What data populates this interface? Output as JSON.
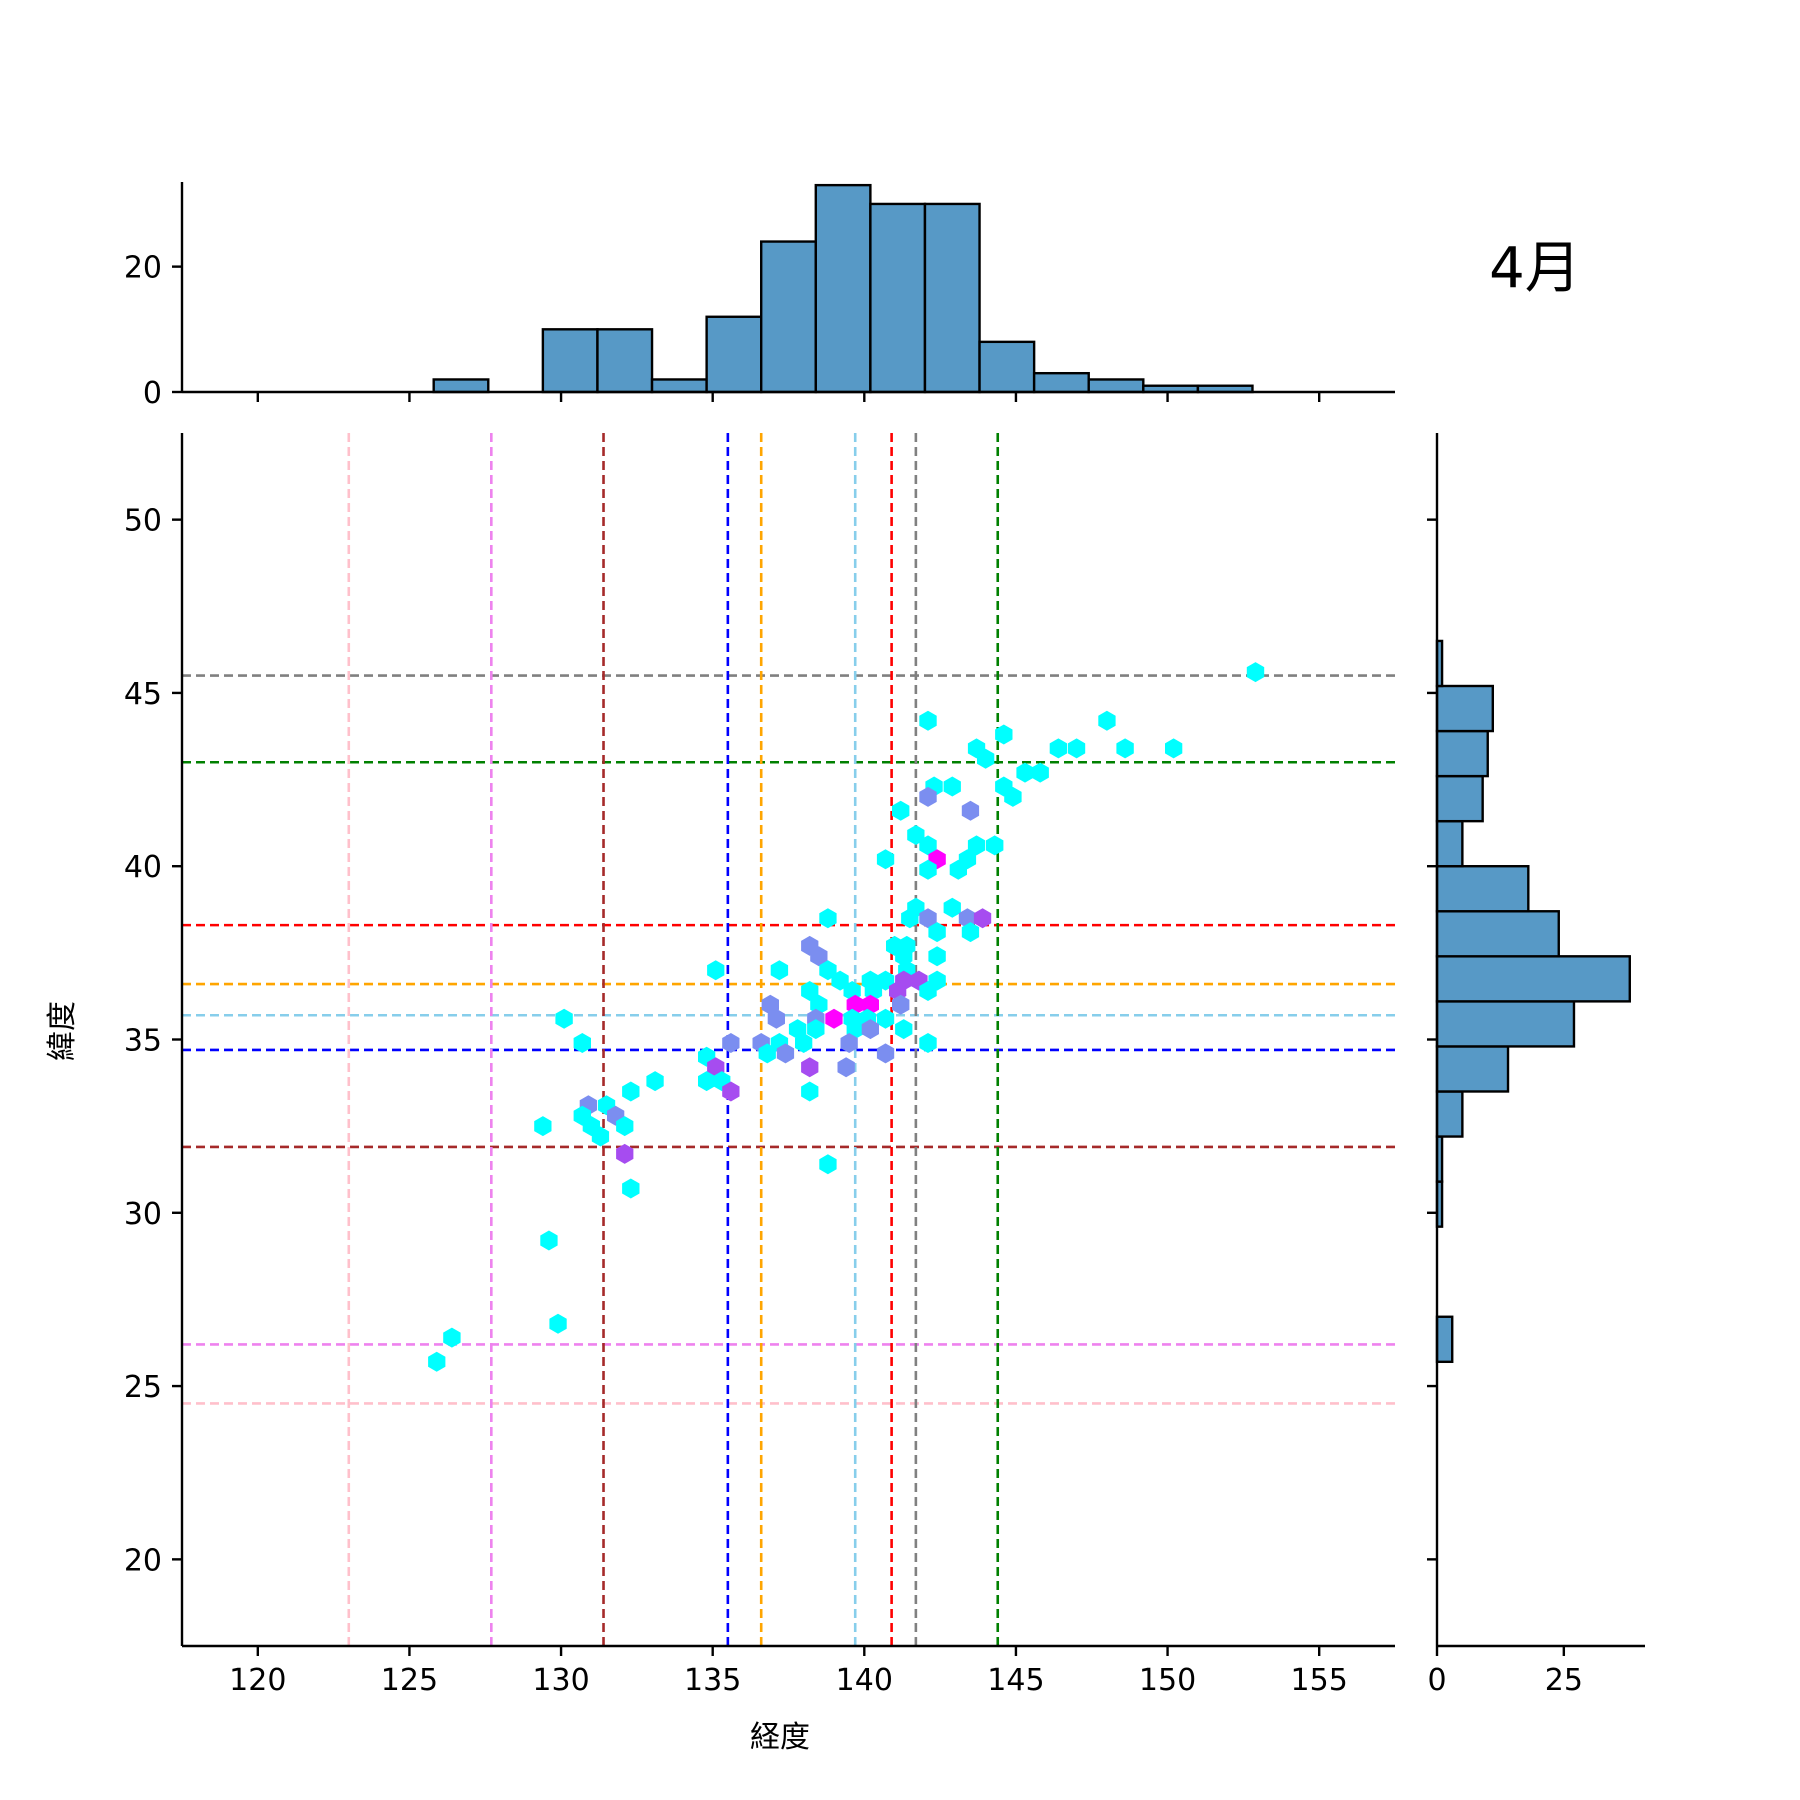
{
  "chart_data": {
    "type": "hexbin-joint",
    "annotation": "4月",
    "xlabel": "経度",
    "ylabel": "緯度",
    "xlim": [
      117.5,
      157.5
    ],
    "ylim": [
      17.5,
      52.5
    ],
    "xticks": [
      120,
      125,
      130,
      135,
      140,
      145,
      150,
      155
    ],
    "yticks": [
      20,
      25,
      30,
      35,
      40,
      45,
      50
    ],
    "top_hist": {
      "yticks": [
        0,
        20
      ],
      "ymax": 33.5,
      "bin_edges": [
        125.8,
        127.6,
        129.4,
        131.2,
        133.0,
        134.8,
        136.6,
        138.4,
        140.2,
        142.0,
        143.8,
        145.6,
        147.4,
        149.2,
        151.0,
        152.8
      ],
      "counts": [
        2,
        0,
        10,
        10,
        2,
        12,
        24,
        33,
        30,
        30,
        8,
        3,
        2,
        1,
        1
      ],
      "color": "#5799c6"
    },
    "right_hist": {
      "xticks": [
        0,
        25
      ],
      "xmax": 41,
      "bin_edges": [
        25.7,
        27.0,
        28.3,
        29.6,
        30.9,
        32.2,
        33.5,
        34.8,
        36.1,
        37.4,
        38.7,
        40.0,
        41.3,
        42.6,
        43.9,
        45.2,
        46.5
      ],
      "counts": [
        3,
        0,
        0,
        1,
        1,
        5,
        14,
        27,
        38,
        24,
        18,
        5,
        9,
        10,
        11,
        1
      ],
      "color": "#5799c6"
    },
    "vlines": [
      {
        "x": 123.0,
        "color": "#ffc0cb"
      },
      {
        "x": 127.7,
        "color": "#ee82ee"
      },
      {
        "x": 131.4,
        "color": "#a52a2a"
      },
      {
        "x": 135.5,
        "color": "#0000ff"
      },
      {
        "x": 136.6,
        "color": "#ffa500"
      },
      {
        "x": 139.7,
        "color": "#87ceeb"
      },
      {
        "x": 140.9,
        "color": "#ff0000"
      },
      {
        "x": 141.7,
        "color": "#808080"
      },
      {
        "x": 144.4,
        "color": "#008000"
      }
    ],
    "hlines": [
      {
        "y": 24.5,
        "color": "#ffc0cb"
      },
      {
        "y": 26.2,
        "color": "#ee82ee"
      },
      {
        "y": 31.9,
        "color": "#a52a2a"
      },
      {
        "y": 34.7,
        "color": "#0000ff"
      },
      {
        "y": 35.7,
        "color": "#87ceeb"
      },
      {
        "y": 36.6,
        "color": "#ffa500"
      },
      {
        "y": 38.3,
        "color": "#ff0000"
      },
      {
        "y": 43.0,
        "color": "#008000"
      },
      {
        "y": 45.5,
        "color": "#808080"
      }
    ],
    "hexbins": [
      {
        "x": 152.9,
        "y": 45.6,
        "color": "#00ffff"
      },
      {
        "x": 142.1,
        "y": 44.2,
        "color": "#00ffff"
      },
      {
        "x": 148.0,
        "y": 44.2,
        "color": "#00ffff"
      },
      {
        "x": 143.7,
        "y": 43.4,
        "color": "#00ffff"
      },
      {
        "x": 144.0,
        "y": 43.1,
        "color": "#00ffff"
      },
      {
        "x": 144.6,
        "y": 43.8,
        "color": "#00ffff"
      },
      {
        "x": 146.4,
        "y": 43.4,
        "color": "#00ffff"
      },
      {
        "x": 147.0,
        "y": 43.4,
        "color": "#00ffff"
      },
      {
        "x": 148.6,
        "y": 43.4,
        "color": "#00ffff"
      },
      {
        "x": 150.2,
        "y": 43.4,
        "color": "#00ffff"
      },
      {
        "x": 145.3,
        "y": 42.7,
        "color": "#00ffff"
      },
      {
        "x": 145.8,
        "y": 42.7,
        "color": "#00ffff"
      },
      {
        "x": 142.3,
        "y": 42.3,
        "color": "#00ffff"
      },
      {
        "x": 142.9,
        "y": 42.3,
        "color": "#00ffff"
      },
      {
        "x": 144.6,
        "y": 42.3,
        "color": "#00ffff"
      },
      {
        "x": 144.9,
        "y": 42.0,
        "color": "#00ffff"
      },
      {
        "x": 142.1,
        "y": 42.0,
        "color": "#7b8ef0"
      },
      {
        "x": 141.2,
        "y": 41.6,
        "color": "#00ffff"
      },
      {
        "x": 143.5,
        "y": 41.6,
        "color": "#7b8ef0"
      },
      {
        "x": 141.7,
        "y": 40.9,
        "color": "#00ffff"
      },
      {
        "x": 142.1,
        "y": 40.6,
        "color": "#00ffff"
      },
      {
        "x": 143.7,
        "y": 40.6,
        "color": "#00ffff"
      },
      {
        "x": 144.3,
        "y": 40.6,
        "color": "#00ffff"
      },
      {
        "x": 140.7,
        "y": 40.2,
        "color": "#00ffff"
      },
      {
        "x": 142.4,
        "y": 40.2,
        "color": "#ff00ff"
      },
      {
        "x": 143.4,
        "y": 40.2,
        "color": "#00ffff"
      },
      {
        "x": 142.1,
        "y": 39.9,
        "color": "#00ffff"
      },
      {
        "x": 143.1,
        "y": 39.9,
        "color": "#00ffff"
      },
      {
        "x": 141.7,
        "y": 38.8,
        "color": "#00ffff"
      },
      {
        "x": 142.9,
        "y": 38.8,
        "color": "#00ffff"
      },
      {
        "x": 138.8,
        "y": 38.5,
        "color": "#00ffff"
      },
      {
        "x": 141.5,
        "y": 38.5,
        "color": "#00ffff"
      },
      {
        "x": 142.1,
        "y": 38.5,
        "color": "#7b8ef0"
      },
      {
        "x": 143.4,
        "y": 38.5,
        "color": "#7b8ef0"
      },
      {
        "x": 143.9,
        "y": 38.5,
        "color": "#a64cf0"
      },
      {
        "x": 142.4,
        "y": 38.1,
        "color": "#00ffff"
      },
      {
        "x": 143.5,
        "y": 38.1,
        "color": "#00ffff"
      },
      {
        "x": 138.2,
        "y": 37.7,
        "color": "#7b8ef0"
      },
      {
        "x": 141.0,
        "y": 37.7,
        "color": "#00ffff"
      },
      {
        "x": 141.4,
        "y": 37.7,
        "color": "#00ffff"
      },
      {
        "x": 138.5,
        "y": 37.4,
        "color": "#7b8ef0"
      },
      {
        "x": 141.3,
        "y": 37.4,
        "color": "#00ffff"
      },
      {
        "x": 142.4,
        "y": 37.4,
        "color": "#00ffff"
      },
      {
        "x": 135.1,
        "y": 37.0,
        "color": "#00ffff"
      },
      {
        "x": 137.2,
        "y": 37.0,
        "color": "#00ffff"
      },
      {
        "x": 138.8,
        "y": 37.0,
        "color": "#00ffff"
      },
      {
        "x": 141.4,
        "y": 37.0,
        "color": "#00ffff"
      },
      {
        "x": 139.2,
        "y": 36.7,
        "color": "#00ffff"
      },
      {
        "x": 140.2,
        "y": 36.7,
        "color": "#00ffff"
      },
      {
        "x": 140.7,
        "y": 36.7,
        "color": "#00ffff"
      },
      {
        "x": 141.3,
        "y": 36.7,
        "color": "#a64cf0"
      },
      {
        "x": 141.8,
        "y": 36.7,
        "color": "#a64cf0"
      },
      {
        "x": 142.4,
        "y": 36.7,
        "color": "#00ffff"
      },
      {
        "x": 138.2,
        "y": 36.4,
        "color": "#00ffff"
      },
      {
        "x": 139.6,
        "y": 36.4,
        "color": "#00ffff"
      },
      {
        "x": 140.3,
        "y": 36.4,
        "color": "#00ffff"
      },
      {
        "x": 141.1,
        "y": 36.4,
        "color": "#a64cf0"
      },
      {
        "x": 142.1,
        "y": 36.4,
        "color": "#00ffff"
      },
      {
        "x": 136.9,
        "y": 36.0,
        "color": "#7b8ef0"
      },
      {
        "x": 138.5,
        "y": 36.0,
        "color": "#00ffff"
      },
      {
        "x": 139.7,
        "y": 36.0,
        "color": "#ff00ff"
      },
      {
        "x": 140.2,
        "y": 36.0,
        "color": "#ff00ff"
      },
      {
        "x": 141.2,
        "y": 36.0,
        "color": "#7b8ef0"
      },
      {
        "x": 137.1,
        "y": 35.6,
        "color": "#7b8ef0"
      },
      {
        "x": 138.4,
        "y": 35.6,
        "color": "#7b8ef0"
      },
      {
        "x": 139.0,
        "y": 35.6,
        "color": "#ff00ff"
      },
      {
        "x": 139.6,
        "y": 35.6,
        "color": "#00ffff"
      },
      {
        "x": 140.1,
        "y": 35.6,
        "color": "#00ffff"
      },
      {
        "x": 140.7,
        "y": 35.6,
        "color": "#00ffff"
      },
      {
        "x": 130.1,
        "y": 35.6,
        "color": "#00ffff"
      },
      {
        "x": 137.8,
        "y": 35.3,
        "color": "#00ffff"
      },
      {
        "x": 138.4,
        "y": 35.3,
        "color": "#00ffff"
      },
      {
        "x": 139.7,
        "y": 35.3,
        "color": "#00ffff"
      },
      {
        "x": 140.2,
        "y": 35.3,
        "color": "#7b8ef0"
      },
      {
        "x": 141.3,
        "y": 35.3,
        "color": "#00ffff"
      },
      {
        "x": 130.7,
        "y": 34.9,
        "color": "#00ffff"
      },
      {
        "x": 135.6,
        "y": 34.9,
        "color": "#7b8ef0"
      },
      {
        "x": 136.6,
        "y": 34.9,
        "color": "#7b8ef0"
      },
      {
        "x": 137.2,
        "y": 34.9,
        "color": "#00ffff"
      },
      {
        "x": 138.0,
        "y": 34.9,
        "color": "#00ffff"
      },
      {
        "x": 139.5,
        "y": 34.9,
        "color": "#7b8ef0"
      },
      {
        "x": 142.1,
        "y": 34.9,
        "color": "#00ffff"
      },
      {
        "x": 134.8,
        "y": 34.5,
        "color": "#00ffff"
      },
      {
        "x": 136.8,
        "y": 34.6,
        "color": "#00ffff"
      },
      {
        "x": 137.4,
        "y": 34.6,
        "color": "#7b8ef0"
      },
      {
        "x": 140.7,
        "y": 34.6,
        "color": "#7b8ef0"
      },
      {
        "x": 135.1,
        "y": 34.2,
        "color": "#a64cf0"
      },
      {
        "x": 138.2,
        "y": 34.2,
        "color": "#a64cf0"
      },
      {
        "x": 139.4,
        "y": 34.2,
        "color": "#7b8ef0"
      },
      {
        "x": 133.1,
        "y": 33.8,
        "color": "#00ffff"
      },
      {
        "x": 134.8,
        "y": 33.8,
        "color": "#00ffff"
      },
      {
        "x": 135.3,
        "y": 33.8,
        "color": "#00ffff"
      },
      {
        "x": 132.3,
        "y": 33.5,
        "color": "#00ffff"
      },
      {
        "x": 135.6,
        "y": 33.5,
        "color": "#a64cf0"
      },
      {
        "x": 138.2,
        "y": 33.5,
        "color": "#00ffff"
      },
      {
        "x": 130.9,
        "y": 33.1,
        "color": "#7b8ef0"
      },
      {
        "x": 131.5,
        "y": 33.1,
        "color": "#00ffff"
      },
      {
        "x": 130.7,
        "y": 32.8,
        "color": "#00ffff"
      },
      {
        "x": 131.8,
        "y": 32.8,
        "color": "#7b8ef0"
      },
      {
        "x": 129.4,
        "y": 32.5,
        "color": "#00ffff"
      },
      {
        "x": 131.0,
        "y": 32.5,
        "color": "#00ffff"
      },
      {
        "x": 132.1,
        "y": 32.5,
        "color": "#00ffff"
      },
      {
        "x": 131.3,
        "y": 32.2,
        "color": "#00ffff"
      },
      {
        "x": 132.1,
        "y": 31.7,
        "color": "#a64cf0"
      },
      {
        "x": 138.8,
        "y": 31.4,
        "color": "#00ffff"
      },
      {
        "x": 132.3,
        "y": 30.7,
        "color": "#00ffff"
      },
      {
        "x": 129.6,
        "y": 29.2,
        "color": "#00ffff"
      },
      {
        "x": 129.9,
        "y": 26.8,
        "color": "#00ffff"
      },
      {
        "x": 126.4,
        "y": 26.4,
        "color": "#00ffff"
      },
      {
        "x": 125.9,
        "y": 25.7,
        "color": "#00ffff"
      }
    ]
  }
}
